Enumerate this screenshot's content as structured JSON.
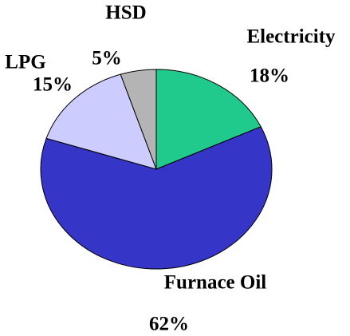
{
  "chart_data": {
    "type": "pie",
    "categories": [
      "Electricity",
      "Furnace Oil",
      "LPG",
      "HSD"
    ],
    "values": [
      18,
      62,
      15,
      5
    ],
    "value_labels": [
      "18%",
      "62%",
      "15%",
      "5%"
    ],
    "colors": [
      "#1fca8c",
      "#3535c8",
      "#ccccff",
      "#b4b4b4"
    ]
  }
}
